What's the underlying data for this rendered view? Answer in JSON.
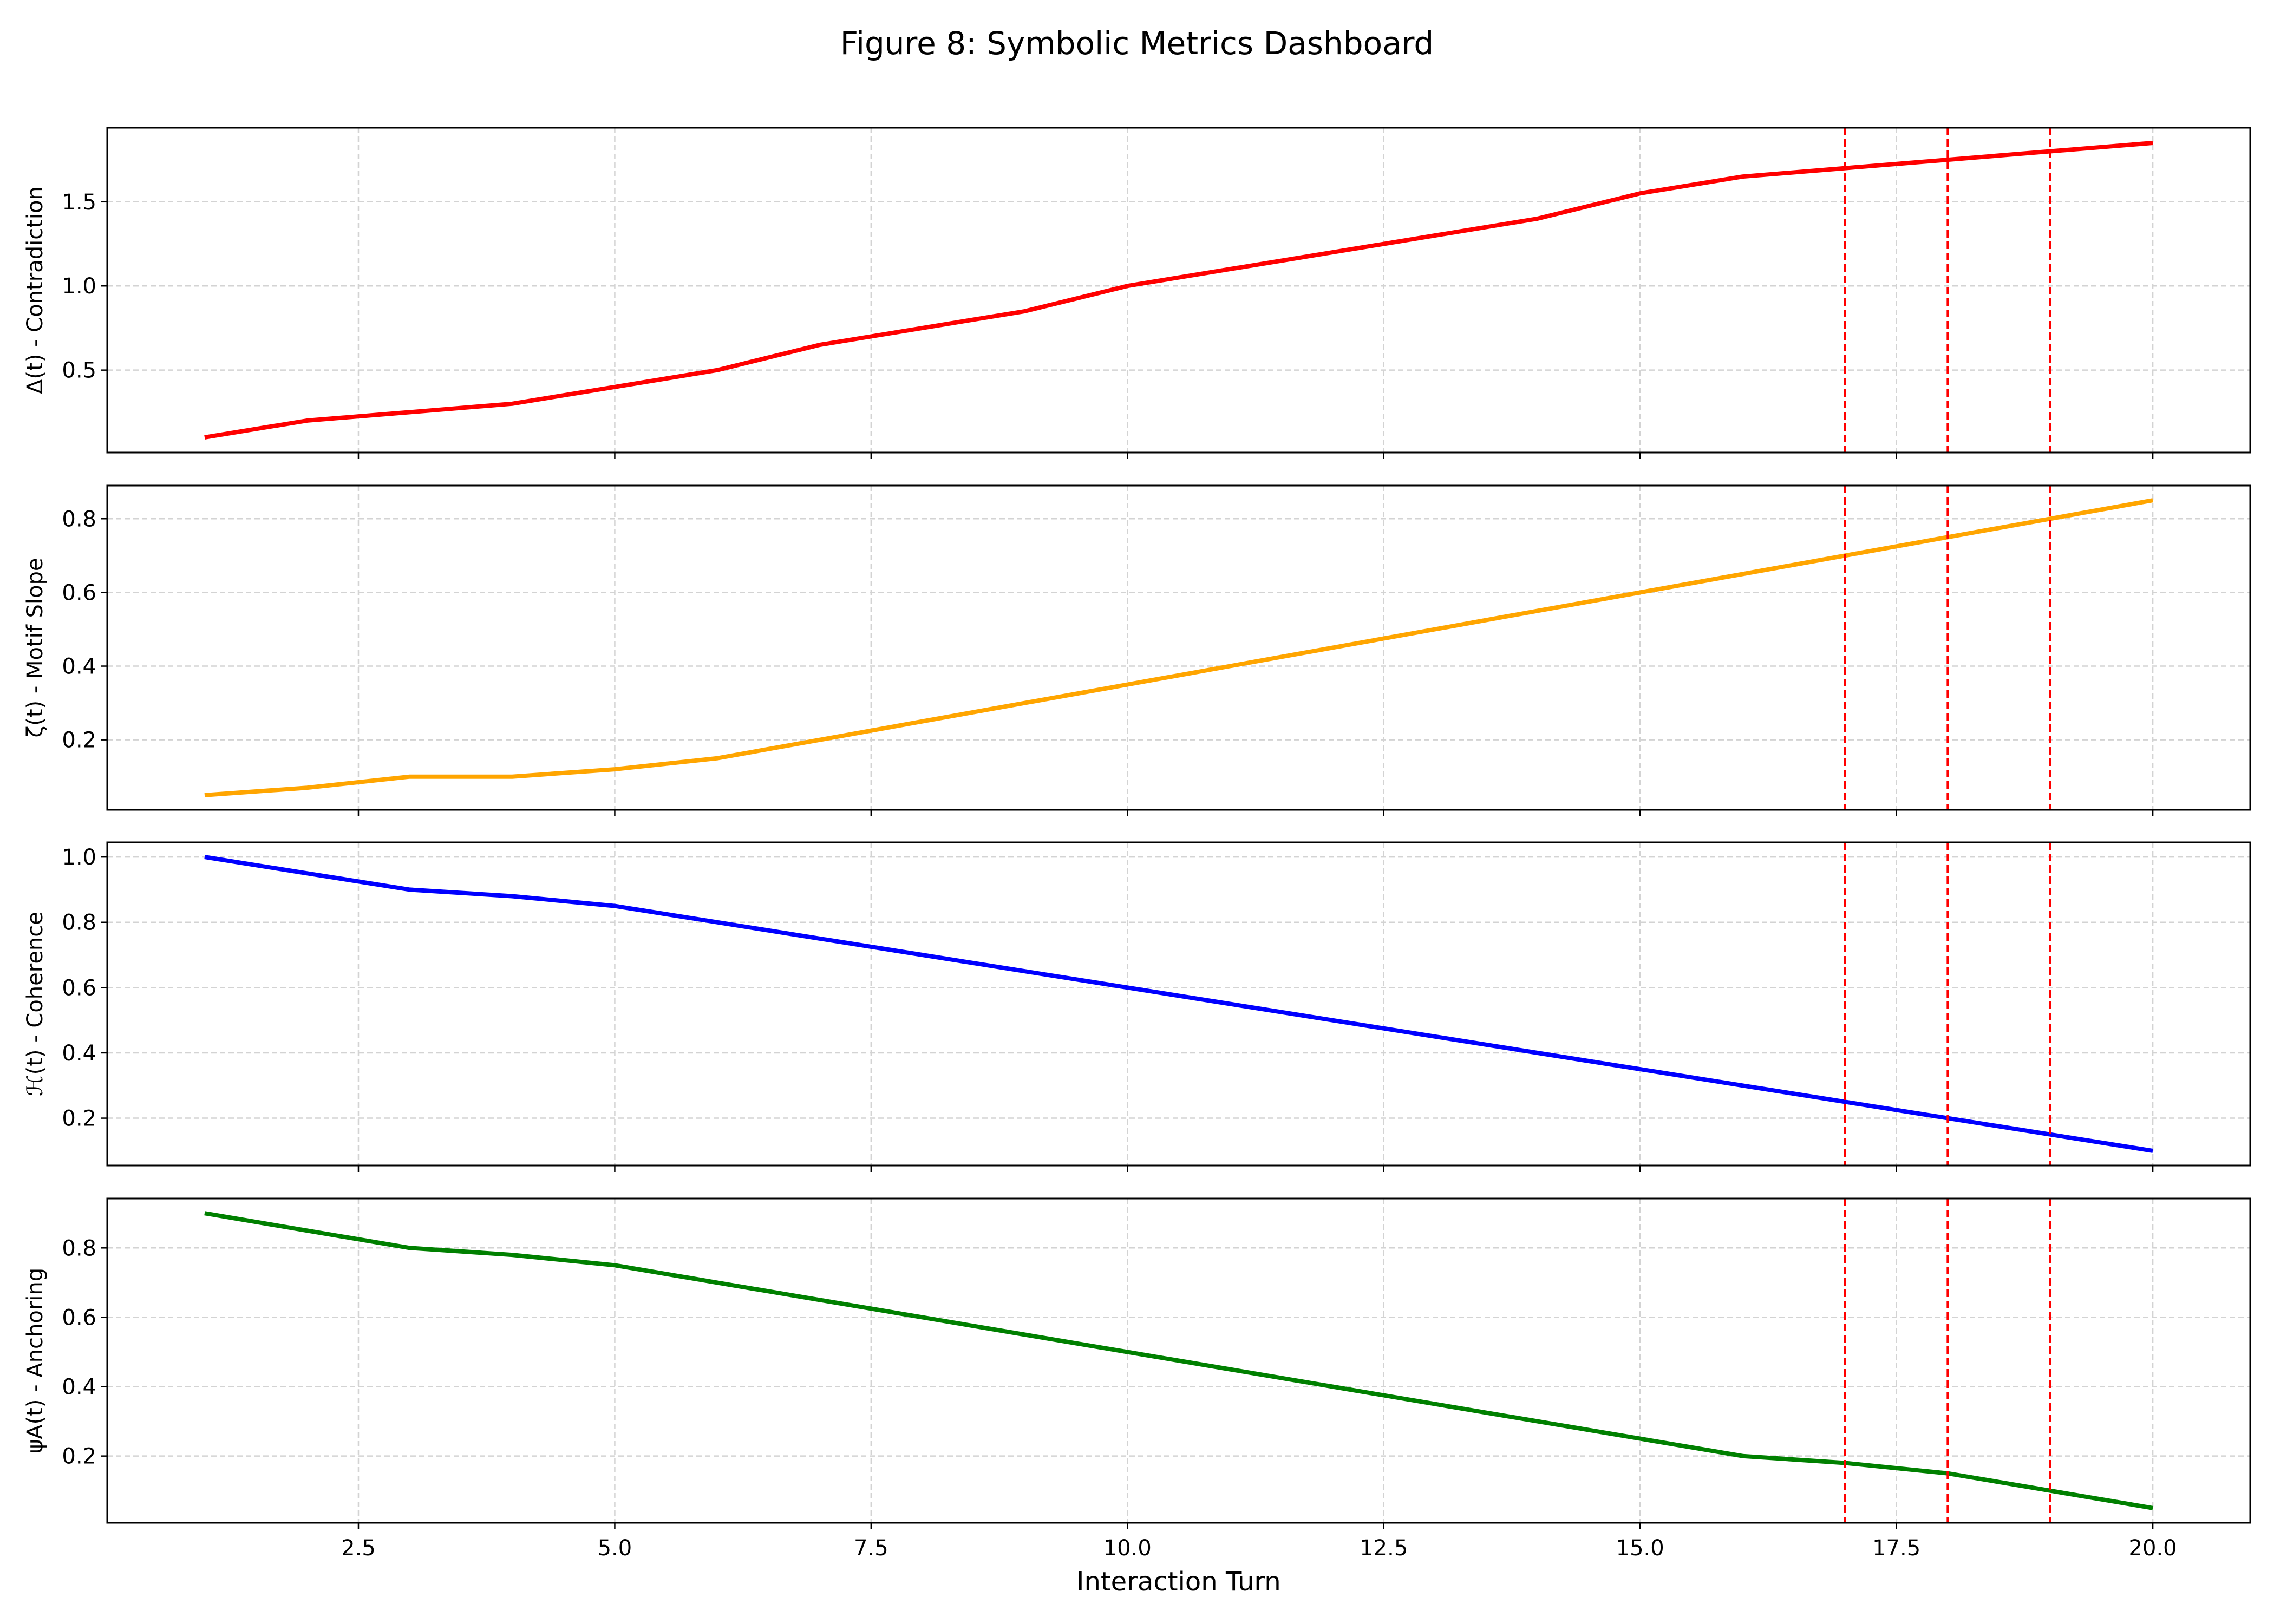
{
  "figure": {
    "title": "Figure 8: Symbolic Metrics Dashboard"
  },
  "chart_data": [
    {
      "type": "line",
      "ylabel": "Δ(t) - Contradiction",
      "xlabel": "",
      "color": "#ff0000",
      "x": [
        1,
        2,
        3,
        4,
        5,
        6,
        7,
        8,
        9,
        10,
        11,
        12,
        13,
        14,
        15,
        16,
        17,
        18,
        19,
        20
      ],
      "values": [
        0.1,
        0.2,
        0.25,
        0.3,
        0.4,
        0.5,
        0.65,
        0.75,
        0.85,
        1.0,
        1.1,
        1.2,
        1.3,
        1.4,
        1.55,
        1.65,
        1.7,
        1.75,
        1.8,
        1.85
      ],
      "xlim": [
        0.05,
        20.95
      ],
      "ylim": [
        0.01,
        1.94
      ],
      "yticks": [
        0.5,
        1.0,
        1.5
      ],
      "ytick_labels": [
        "0.5",
        "1.0",
        "1.5"
      ],
      "grid": true
    },
    {
      "type": "line",
      "ylabel": "ζ(t) - Motif Slope",
      "xlabel": "",
      "color": "#ffa500",
      "x": [
        1,
        2,
        3,
        4,
        5,
        6,
        7,
        8,
        9,
        10,
        11,
        12,
        13,
        14,
        15,
        16,
        17,
        18,
        19,
        20
      ],
      "values": [
        0.05,
        0.07,
        0.1,
        0.1,
        0.12,
        0.15,
        0.2,
        0.25,
        0.3,
        0.35,
        0.4,
        0.45,
        0.5,
        0.55,
        0.6,
        0.65,
        0.7,
        0.75,
        0.8,
        0.85
      ],
      "xlim": [
        0.05,
        20.95
      ],
      "ylim": [
        0.01,
        0.89
      ],
      "yticks": [
        0.2,
        0.4,
        0.6,
        0.8
      ],
      "ytick_labels": [
        "0.2",
        "0.4",
        "0.6",
        "0.8"
      ],
      "grid": true
    },
    {
      "type": "line",
      "ylabel": "ℋ(t) - Coherence",
      "xlabel": "",
      "color": "#0000ff",
      "x": [
        1,
        2,
        3,
        4,
        5,
        6,
        7,
        8,
        9,
        10,
        11,
        12,
        13,
        14,
        15,
        16,
        17,
        18,
        19,
        20
      ],
      "values": [
        1.0,
        0.95,
        0.9,
        0.88,
        0.85,
        0.8,
        0.75,
        0.7,
        0.65,
        0.6,
        0.55,
        0.5,
        0.45,
        0.4,
        0.35,
        0.3,
        0.25,
        0.2,
        0.15,
        0.1
      ],
      "xlim": [
        0.05,
        20.95
      ],
      "ylim": [
        0.055,
        1.045
      ],
      "yticks": [
        0.2,
        0.4,
        0.6,
        0.8,
        1.0
      ],
      "ytick_labels": [
        "0.2",
        "0.4",
        "0.6",
        "0.8",
        "1.0"
      ],
      "grid": true
    },
    {
      "type": "line",
      "ylabel": "ψA(t) - Anchoring",
      "xlabel": "Interaction Turn",
      "color": "#008000",
      "x": [
        1,
        2,
        3,
        4,
        5,
        6,
        7,
        8,
        9,
        10,
        11,
        12,
        13,
        14,
        15,
        16,
        17,
        18,
        19,
        20
      ],
      "values": [
        0.9,
        0.85,
        0.8,
        0.78,
        0.75,
        0.7,
        0.65,
        0.6,
        0.55,
        0.5,
        0.45,
        0.4,
        0.35,
        0.3,
        0.25,
        0.2,
        0.18,
        0.15,
        0.1,
        0.05
      ],
      "xlim": [
        0.05,
        20.95
      ],
      "ylim": [
        0.0075,
        0.9425
      ],
      "yticks": [
        0.2,
        0.4,
        0.6,
        0.8
      ],
      "ytick_labels": [
        "0.2",
        "0.4",
        "0.6",
        "0.8"
      ],
      "grid": true
    }
  ],
  "shared_x": {
    "xticks": [
      2.5,
      5.0,
      7.5,
      10.0,
      12.5,
      15.0,
      17.5,
      20.0
    ],
    "xtick_labels": [
      "2.5",
      "5.0",
      "7.5",
      "10.0",
      "12.5",
      "15.0",
      "17.5",
      "20.0"
    ]
  },
  "markers": {
    "x": [
      17,
      18,
      19
    ],
    "color": "#ff0000",
    "style": "dashed"
  },
  "colors": {
    "grid": "#d3d3d3",
    "axes": "#000000",
    "background": "#ffffff"
  }
}
